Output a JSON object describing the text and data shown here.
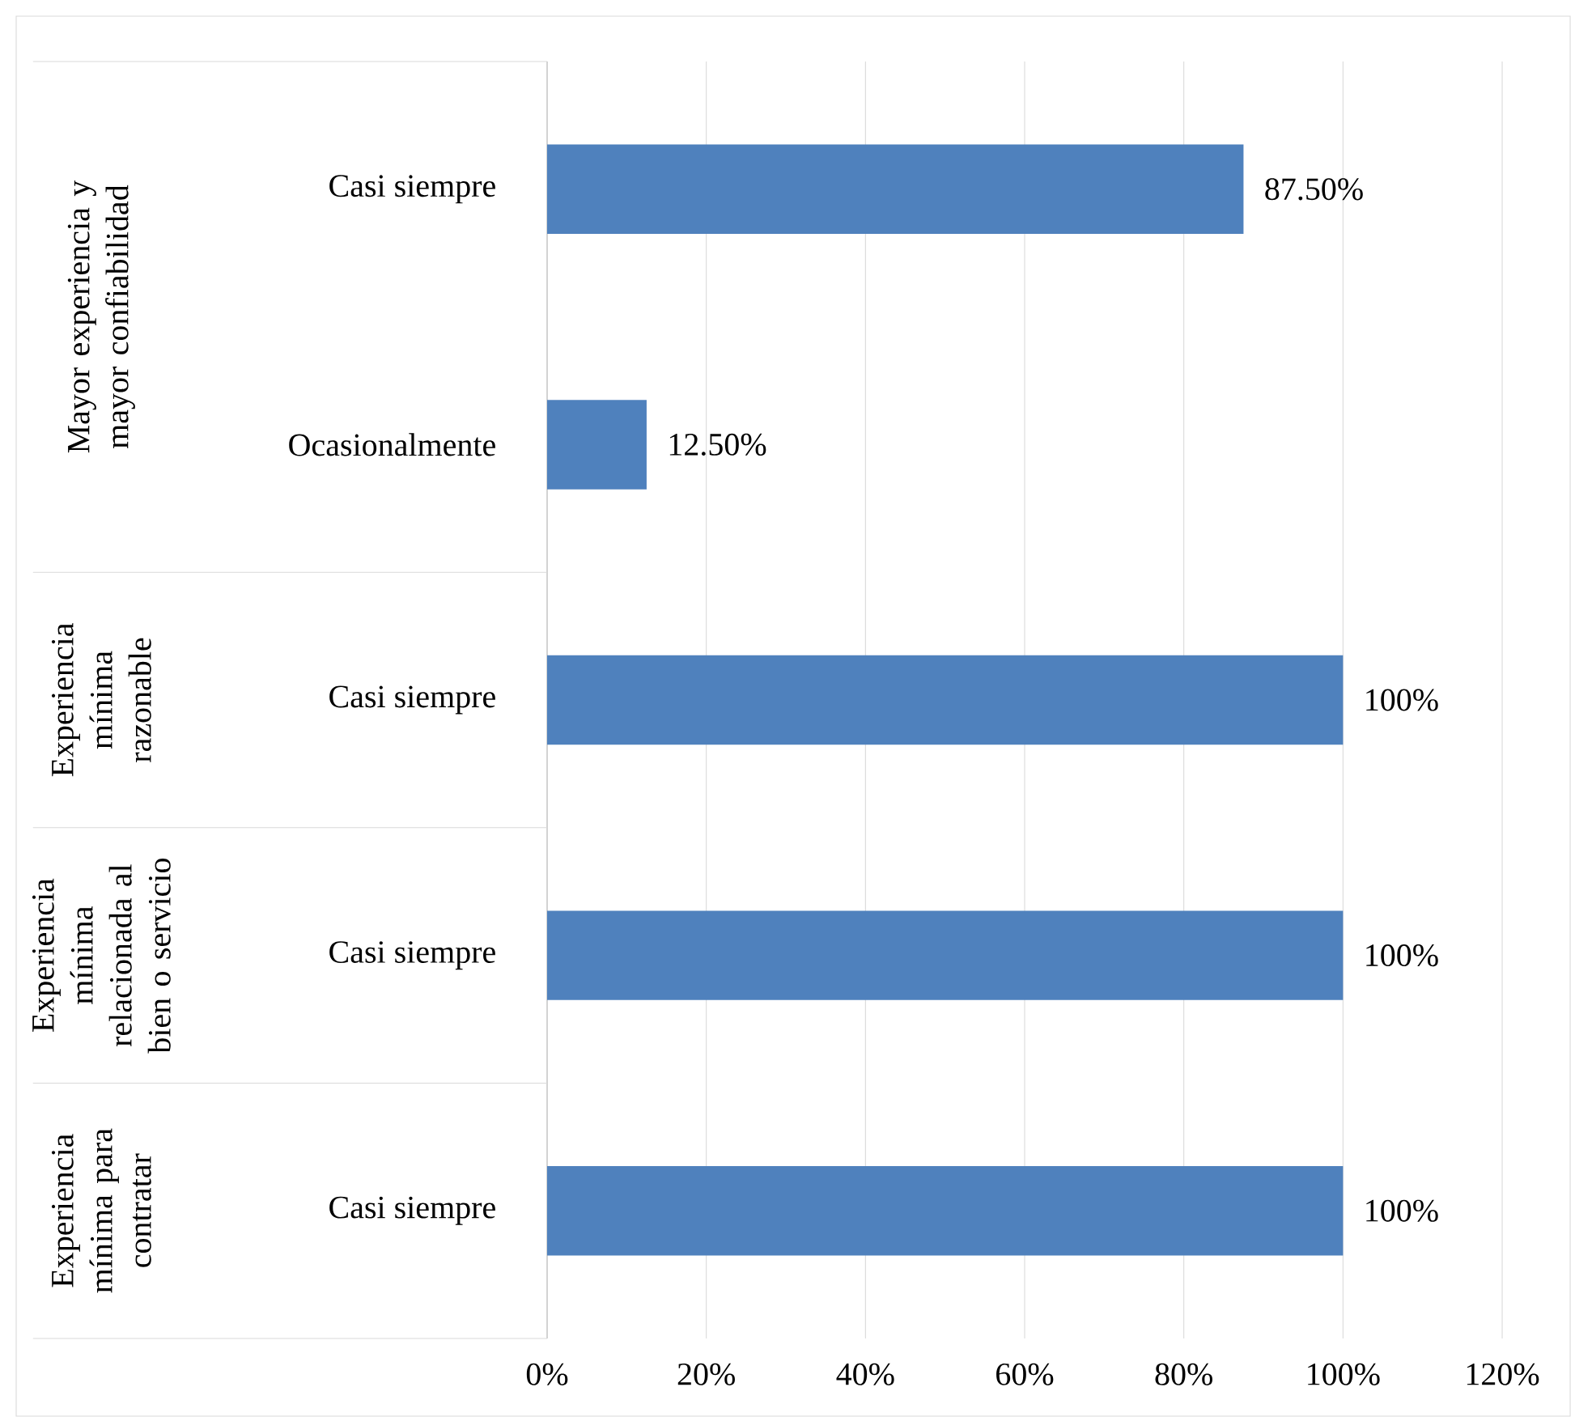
{
  "chart_data": {
    "type": "bar",
    "orientation": "horizontal",
    "categories": [
      "Casi siempre",
      "Ocasionalmente",
      "Casi siempre",
      "Casi siempre",
      "Casi siempre"
    ],
    "values": [
      87.5,
      12.5,
      100,
      100,
      100
    ],
    "value_labels": [
      "87.50%",
      "12.50%",
      "100%",
      "100%",
      "100%"
    ],
    "color": "#4f81bd",
    "xlim": [
      0,
      120
    ],
    "xticks": [
      {
        "value": 0,
        "label": "0%"
      },
      {
        "value": 20,
        "label": "20%"
      },
      {
        "value": 40,
        "label": "40%"
      },
      {
        "value": 60,
        "label": "60%"
      },
      {
        "value": 80,
        "label": "80%"
      },
      {
        "value": 100,
        "label": "100%"
      },
      {
        "value": 120,
        "label": "120%"
      }
    ],
    "grid": "x",
    "annotations": [
      "Mayor experiencia y mayor confiabilidad",
      "Experiencia mínima razonable",
      "Experiencia mínima relacionada al bien o servicio",
      "Experiencia mínima para contratar"
    ]
  }
}
